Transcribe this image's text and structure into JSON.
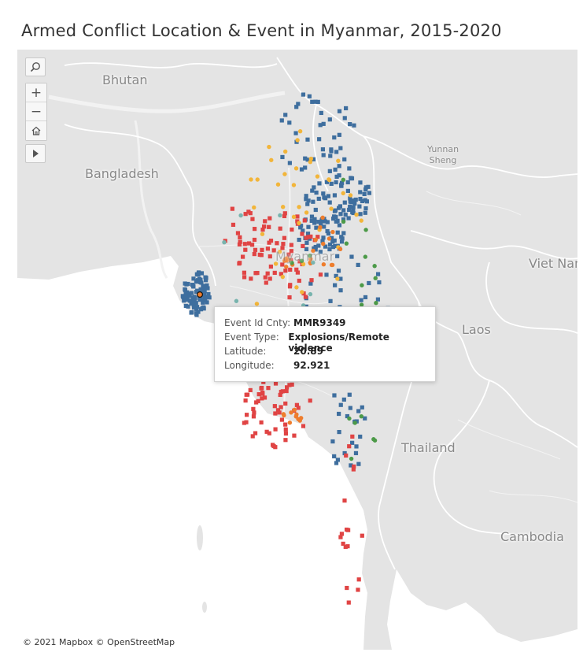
{
  "title": "Armed Conflict Location & Event in Myanmar, 2015-2020",
  "colors": {
    "battles": "#3e6e9e",
    "violence": "#e04444",
    "protests": "#f2b53a",
    "explosions": "#ee7d2d",
    "strategic": "#4c9a48",
    "riots": "#78b4ae",
    "land": "#e4e4e4",
    "water": "#ffffff",
    "border": "#ffffff"
  },
  "map": {
    "labels": {
      "bhutan": "Bhutan",
      "bangladesh": "Bangladesh",
      "yunnan": "Yunnan\nSheng",
      "viet_nam": "Viet Nam",
      "laos": "Laos",
      "thailand": "Thailand",
      "cambodia": "Cambodia",
      "myanmar": "Myanmar"
    },
    "attribution": "© 2021 Mapbox  © OpenStreetMap",
    "toolbar": {
      "search_icon": "search-icon",
      "zoom_in": "+",
      "zoom_out": "−",
      "home_icon": "home-icon",
      "play_icon": "play-icon"
    }
  },
  "tooltip": {
    "rows": [
      {
        "key": "Event Id Cnty:",
        "value": "MMR9349"
      },
      {
        "key": "Event Type:",
        "value": "Explosions/Remote violence"
      },
      {
        "key": "Latitude:",
        "value": "20.89"
      },
      {
        "key": "Longitude:",
        "value": "92.921"
      }
    ]
  }
}
